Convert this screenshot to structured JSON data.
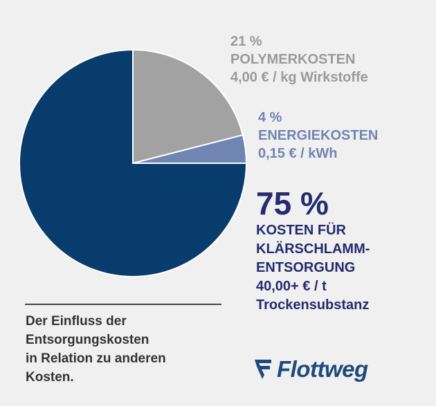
{
  "chart_data": {
    "type": "pie",
    "slices": [
      {
        "name": "POLYMERKOSTEN",
        "value": 21,
        "pct_label": "21 %",
        "detail": "4,00 € / kg Wirkstoffe",
        "color": "#a2a2a2"
      },
      {
        "name": "ENERGIEKOSTEN",
        "value": 4,
        "pct_label": "4 %",
        "detail": "0,15 € / kWh",
        "color": "#7185b3"
      },
      {
        "name_lines": [
          "KOSTEN FÜR",
          "KLÄRSCHLAMM-",
          "ENTSORGUNG"
        ],
        "value": 75,
        "pct_label": "75 %",
        "detail_lines": [
          "40,00+ € / t",
          "Trockensubstanz"
        ],
        "color": "#083c6d"
      }
    ],
    "start_angle": "12 o'clock",
    "direction": "clockwise"
  },
  "caption": "Der Einfluss der\nEntsorgungskosten\nin Relation zu anderen\nKosten.",
  "logo": {
    "text": "Flottweg",
    "color": "#1d4a7c"
  },
  "colors": {
    "background": "#f0f0f0",
    "label_poly": "#9a9a9a",
    "label_energy": "#7185b3",
    "label_sludge": "#242b6e"
  }
}
